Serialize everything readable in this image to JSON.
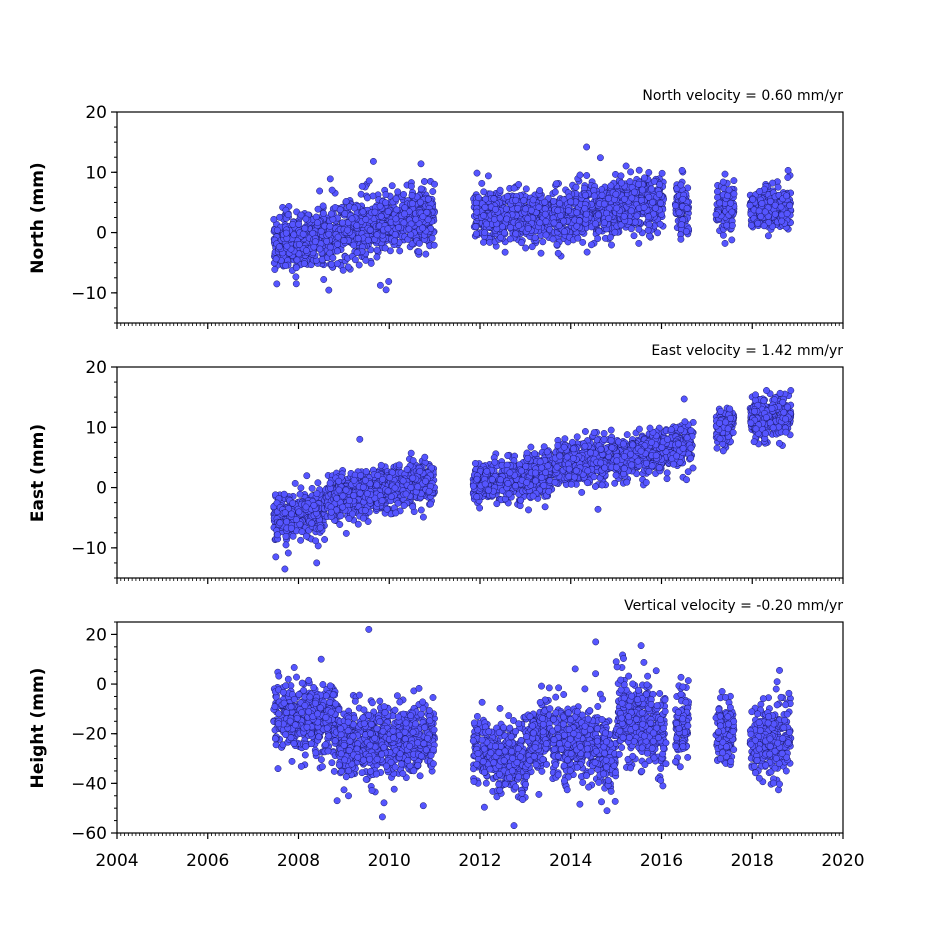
{
  "chart_data": [
    {
      "type": "scatter",
      "title": "North velocity = 0.60 mm/yr",
      "ylabel": "North (mm)",
      "xlim": [
        2004,
        2020
      ],
      "ylim": [
        -15,
        20
      ],
      "yticks": [
        -10,
        0,
        10,
        20
      ],
      "ytick_labels": [
        "−10",
        "0",
        "10",
        "20"
      ],
      "grid": false,
      "series": [
        {
          "segments": [
            {
              "start": 2007.45,
              "end": 2011.0,
              "v0": -2.0,
              "v1": 3.0,
              "sd": 2.4
            },
            {
              "start": 2011.85,
              "end": 2013.55,
              "v0": 3.0,
              "v1": 3.0,
              "sd": 2.0
            },
            {
              "start": 2013.6,
              "end": 2016.05,
              "v0": 2.5,
              "v1": 5.5,
              "sd": 2.3
            },
            {
              "start": 2016.3,
              "end": 2016.6,
              "v0": 4.0,
              "v1": 4.0,
              "sd": 2.2
            },
            {
              "start": 2017.2,
              "end": 2017.6,
              "v0": 4.0,
              "v1": 4.0,
              "sd": 1.8
            },
            {
              "start": 2017.95,
              "end": 2018.85,
              "v0": 4.0,
              "v1": 4.5,
              "sd": 1.8
            }
          ],
          "outliers": [
            [
              2009.93,
              -9.5
            ],
            [
              2009.65,
              11.8
            ],
            [
              2010.7,
              11.4
            ],
            [
              2014.35,
              14.2
            ],
            [
              2017.4,
              9.7
            ],
            [
              2015.5,
              -1.8
            ],
            [
              2017.4,
              -1.8
            ],
            [
              2008.7,
              8.9
            ]
          ]
        }
      ]
    },
    {
      "type": "scatter",
      "title": "East velocity = 1.42 mm/yr",
      "ylabel": "East (mm)",
      "xlim": [
        2004,
        2020
      ],
      "ylim": [
        -15,
        20
      ],
      "yticks": [
        -10,
        0,
        10,
        20
      ],
      "ytick_labels": [
        "−10",
        "0",
        "10",
        "20"
      ],
      "grid": false,
      "series": [
        {
          "segments": [
            {
              "start": 2007.45,
              "end": 2008.6,
              "v0": -5.5,
              "v1": -4.0,
              "sd": 1.8
            },
            {
              "start": 2008.6,
              "end": 2011.0,
              "v0": -2.0,
              "v1": 1.0,
              "sd": 1.8
            },
            {
              "start": 2011.85,
              "end": 2013.6,
              "v0": 0.5,
              "v1": 2.5,
              "sd": 1.7
            },
            {
              "start": 2013.65,
              "end": 2016.7,
              "v0": 3.5,
              "v1": 7.0,
              "sd": 1.7
            },
            {
              "start": 2017.2,
              "end": 2017.6,
              "v0": 10.0,
              "v1": 10.5,
              "sd": 1.4
            },
            {
              "start": 2017.95,
              "end": 2018.85,
              "v0": 11.5,
              "v1": 12.0,
              "sd": 1.6
            }
          ],
          "outliers": [
            [
              2007.7,
              -13.5
            ],
            [
              2007.5,
              -11.5
            ],
            [
              2008.4,
              -12.5
            ],
            [
              2009.35,
              8.0
            ],
            [
              2016.55,
              1.3
            ],
            [
              2014.6,
              -3.6
            ],
            [
              2018.85,
              16.1
            ],
            [
              2016.5,
              14.7
            ]
          ]
        }
      ]
    },
    {
      "type": "scatter",
      "title": "Vertical velocity = -0.20 mm/yr",
      "ylabel": "Height (mm)",
      "xlabel": "",
      "xlim": [
        2004,
        2020
      ],
      "ylim": [
        -60,
        25
      ],
      "yticks": [
        -60,
        -40,
        -20,
        0,
        20
      ],
      "ytick_labels": [
        "−60",
        "−40",
        "−20",
        "0",
        "20"
      ],
      "xticks": [
        2004,
        2006,
        2008,
        2010,
        2012,
        2014,
        2016,
        2018,
        2020
      ],
      "xtick_labels": [
        "2004",
        "2006",
        "2008",
        "2010",
        "2012",
        "2014",
        "2016",
        "2018",
        "2020"
      ],
      "grid": false,
      "series": [
        {
          "segments": [
            {
              "start": 2007.45,
              "end": 2008.9,
              "v0": -12.0,
              "v1": -15.0,
              "sd": 7.0
            },
            {
              "start": 2008.9,
              "end": 2011.0,
              "v0": -24.0,
              "v1": -22.0,
              "sd": 7.0
            },
            {
              "start": 2011.85,
              "end": 2013.0,
              "v0": -25.0,
              "v1": -33.0,
              "sd": 7.0
            },
            {
              "start": 2013.0,
              "end": 2013.55,
              "v0": -25.0,
              "v1": -18.0,
              "sd": 7.0
            },
            {
              "start": 2013.6,
              "end": 2015.0,
              "v0": -22.0,
              "v1": -28.0,
              "sd": 8.0
            },
            {
              "start": 2015.0,
              "end": 2016.1,
              "v0": -12.0,
              "v1": -20.0,
              "sd": 7.5
            },
            {
              "start": 2016.3,
              "end": 2016.6,
              "v0": -18.0,
              "v1": -18.0,
              "sd": 7.0
            },
            {
              "start": 2017.2,
              "end": 2017.6,
              "v0": -20.0,
              "v1": -20.0,
              "sd": 6.0
            },
            {
              "start": 2017.95,
              "end": 2018.85,
              "v0": -25.0,
              "v1": -20.0,
              "sd": 7.0
            }
          ],
          "outliers": [
            [
              2009.55,
              22.0
            ],
            [
              2014.55,
              17.0
            ],
            [
              2015.55,
              15.5
            ],
            [
              2012.75,
              -57.0
            ],
            [
              2009.85,
              -53.5
            ],
            [
              2014.8,
              -51.0
            ],
            [
              2008.85,
              -47.0
            ],
            [
              2010.75,
              -49.0
            ],
            [
              2018.6,
              5.5
            ],
            [
              2008.5,
              10.0
            ]
          ]
        }
      ]
    }
  ],
  "colors": {
    "marker_fill": "#5555ff",
    "marker_edge": "#1a1a66",
    "axes": "#000000"
  }
}
